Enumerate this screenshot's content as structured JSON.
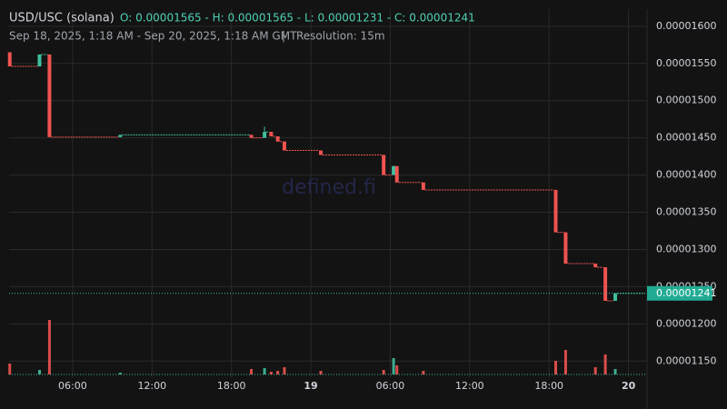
{
  "chart_data": {
    "type": "candlestick",
    "title": "USD/USC (solana)",
    "ohlc_summary": "O: 0.00001565 - H: 0.00001565 - L: 0.00001231 - C: 0.00001241",
    "date_range": "Sep 18, 2025, 1:18 AM - Sep 20, 2025, 1:18 AM GMT",
    "separator": "|",
    "resolution": "Resolution: 15m",
    "watermark": "defined.fi",
    "up_color": "#3fbf9f",
    "down_color": "#ef5350",
    "grid": true,
    "ylim": [
      1.132e-05,
      1.623e-05
    ],
    "yticks": [
      {
        "value": 1.15e-05,
        "label": "0.00001150"
      },
      {
        "value": 1.2e-05,
        "label": "0.00001200"
      },
      {
        "value": 1.25e-05,
        "label": "0.00001250"
      },
      {
        "value": 1.3e-05,
        "label": "0.00001300"
      },
      {
        "value": 1.35e-05,
        "label": "0.00001350"
      },
      {
        "value": 1.4e-05,
        "label": "0.00001400"
      },
      {
        "value": 1.45e-05,
        "label": "0.00001450"
      },
      {
        "value": 1.5e-05,
        "label": "0.00001500"
      },
      {
        "value": 1.55e-05,
        "label": "0.00001550"
      },
      {
        "value": 1.6e-05,
        "label": "0.00001600"
      }
    ],
    "xlim": [
      1.2,
      49.4
    ],
    "xticks": [
      {
        "value": 6,
        "label": "06:00"
      },
      {
        "value": 12,
        "label": "12:00"
      },
      {
        "value": 18,
        "label": "18:00"
      },
      {
        "value": 24,
        "label": "19"
      },
      {
        "value": 30,
        "label": "06:00"
      },
      {
        "value": 36,
        "label": "12:00"
      },
      {
        "value": 42,
        "label": "18:00"
      },
      {
        "value": 48,
        "label": "20"
      }
    ],
    "last_price": {
      "value": 1.241e-05,
      "label": "0.00001241"
    },
    "x": [
      1.25,
      3.5,
      4.25,
      9.6,
      19.5,
      20.5,
      21.0,
      21.5,
      22.0,
      24.75,
      29.5,
      30.25,
      30.5,
      32.5,
      42.5,
      43.25,
      45.5,
      46.25,
      47.0
    ],
    "open": [
      1.565e-05,
      1.546e-05,
      1.562e-05,
      1.451e-05,
      1.454e-05,
      1.45e-05,
      1.458e-05,
      1.452e-05,
      1.445e-05,
      1.433e-05,
      1.427e-05,
      1.4e-05,
      1.412e-05,
      1.39e-05,
      1.38e-05,
      1.323e-05,
      1.281e-05,
      1.276e-05,
      1.231e-05
    ],
    "high": [
      1.565e-05,
      1.562e-05,
      1.562e-05,
      1.454e-05,
      1.454e-05,
      1.465e-05,
      1.458e-05,
      1.452e-05,
      1.445e-05,
      1.433e-05,
      1.427e-05,
      1.412e-05,
      1.412e-05,
      1.39e-05,
      1.38e-05,
      1.323e-05,
      1.281e-05,
      1.276e-05,
      1.241e-05
    ],
    "low": [
      1.546e-05,
      1.546e-05,
      1.451e-05,
      1.451e-05,
      1.45e-05,
      1.45e-05,
      1.452e-05,
      1.445e-05,
      1.433e-05,
      1.427e-05,
      1.4e-05,
      1.4e-05,
      1.39e-05,
      1.38e-05,
      1.323e-05,
      1.281e-05,
      1.276e-05,
      1.231e-05,
      1.231e-05
    ],
    "close": [
      1.546e-05,
      1.562e-05,
      1.451e-05,
      1.454e-05,
      1.45e-05,
      1.458e-05,
      1.452e-05,
      1.445e-05,
      1.433e-05,
      1.427e-05,
      1.4e-05,
      1.412e-05,
      1.39e-05,
      1.38e-05,
      1.323e-05,
      1.281e-05,
      1.276e-05,
      1.231e-05,
      1.241e-05
    ],
    "volume": [
      12,
      5,
      60,
      2,
      6,
      7,
      3,
      4,
      8,
      4,
      5,
      18,
      10,
      4,
      15,
      27,
      8,
      22,
      6
    ]
  }
}
